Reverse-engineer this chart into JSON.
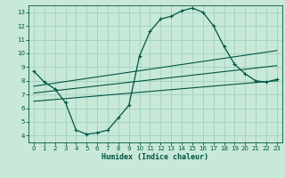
{
  "xlabel": "Humidex (Indice chaleur)",
  "bg_color": "#c8e8d8",
  "grid_color": "#99ccbb",
  "line_color": "#005544",
  "spine_color": "#005544",
  "xlim": [
    -0.5,
    23.5
  ],
  "ylim": [
    3.5,
    13.5
  ],
  "xticks": [
    0,
    1,
    2,
    3,
    4,
    5,
    6,
    7,
    8,
    9,
    10,
    11,
    12,
    13,
    14,
    15,
    16,
    17,
    18,
    19,
    20,
    21,
    22,
    23
  ],
  "yticks": [
    4,
    5,
    6,
    7,
    8,
    9,
    10,
    11,
    12,
    13
  ],
  "line1_x": [
    0,
    1,
    2,
    3,
    4,
    5,
    6,
    7,
    8,
    9,
    10,
    11,
    12,
    13,
    14,
    15,
    16,
    17,
    18,
    19,
    20,
    21,
    22,
    23
  ],
  "line1_y": [
    8.7,
    7.9,
    7.4,
    6.4,
    4.4,
    4.1,
    4.2,
    4.4,
    5.3,
    6.2,
    9.8,
    11.6,
    12.5,
    12.7,
    13.1,
    13.3,
    13.0,
    12.0,
    10.5,
    9.2,
    8.5,
    8.0,
    7.9,
    8.1
  ],
  "line2_x": [
    0,
    23
  ],
  "line2_y": [
    7.6,
    10.2
  ],
  "line3_x": [
    0,
    23
  ],
  "line3_y": [
    7.1,
    9.1
  ],
  "line4_x": [
    0,
    23
  ],
  "line4_y": [
    6.5,
    8.0
  ]
}
